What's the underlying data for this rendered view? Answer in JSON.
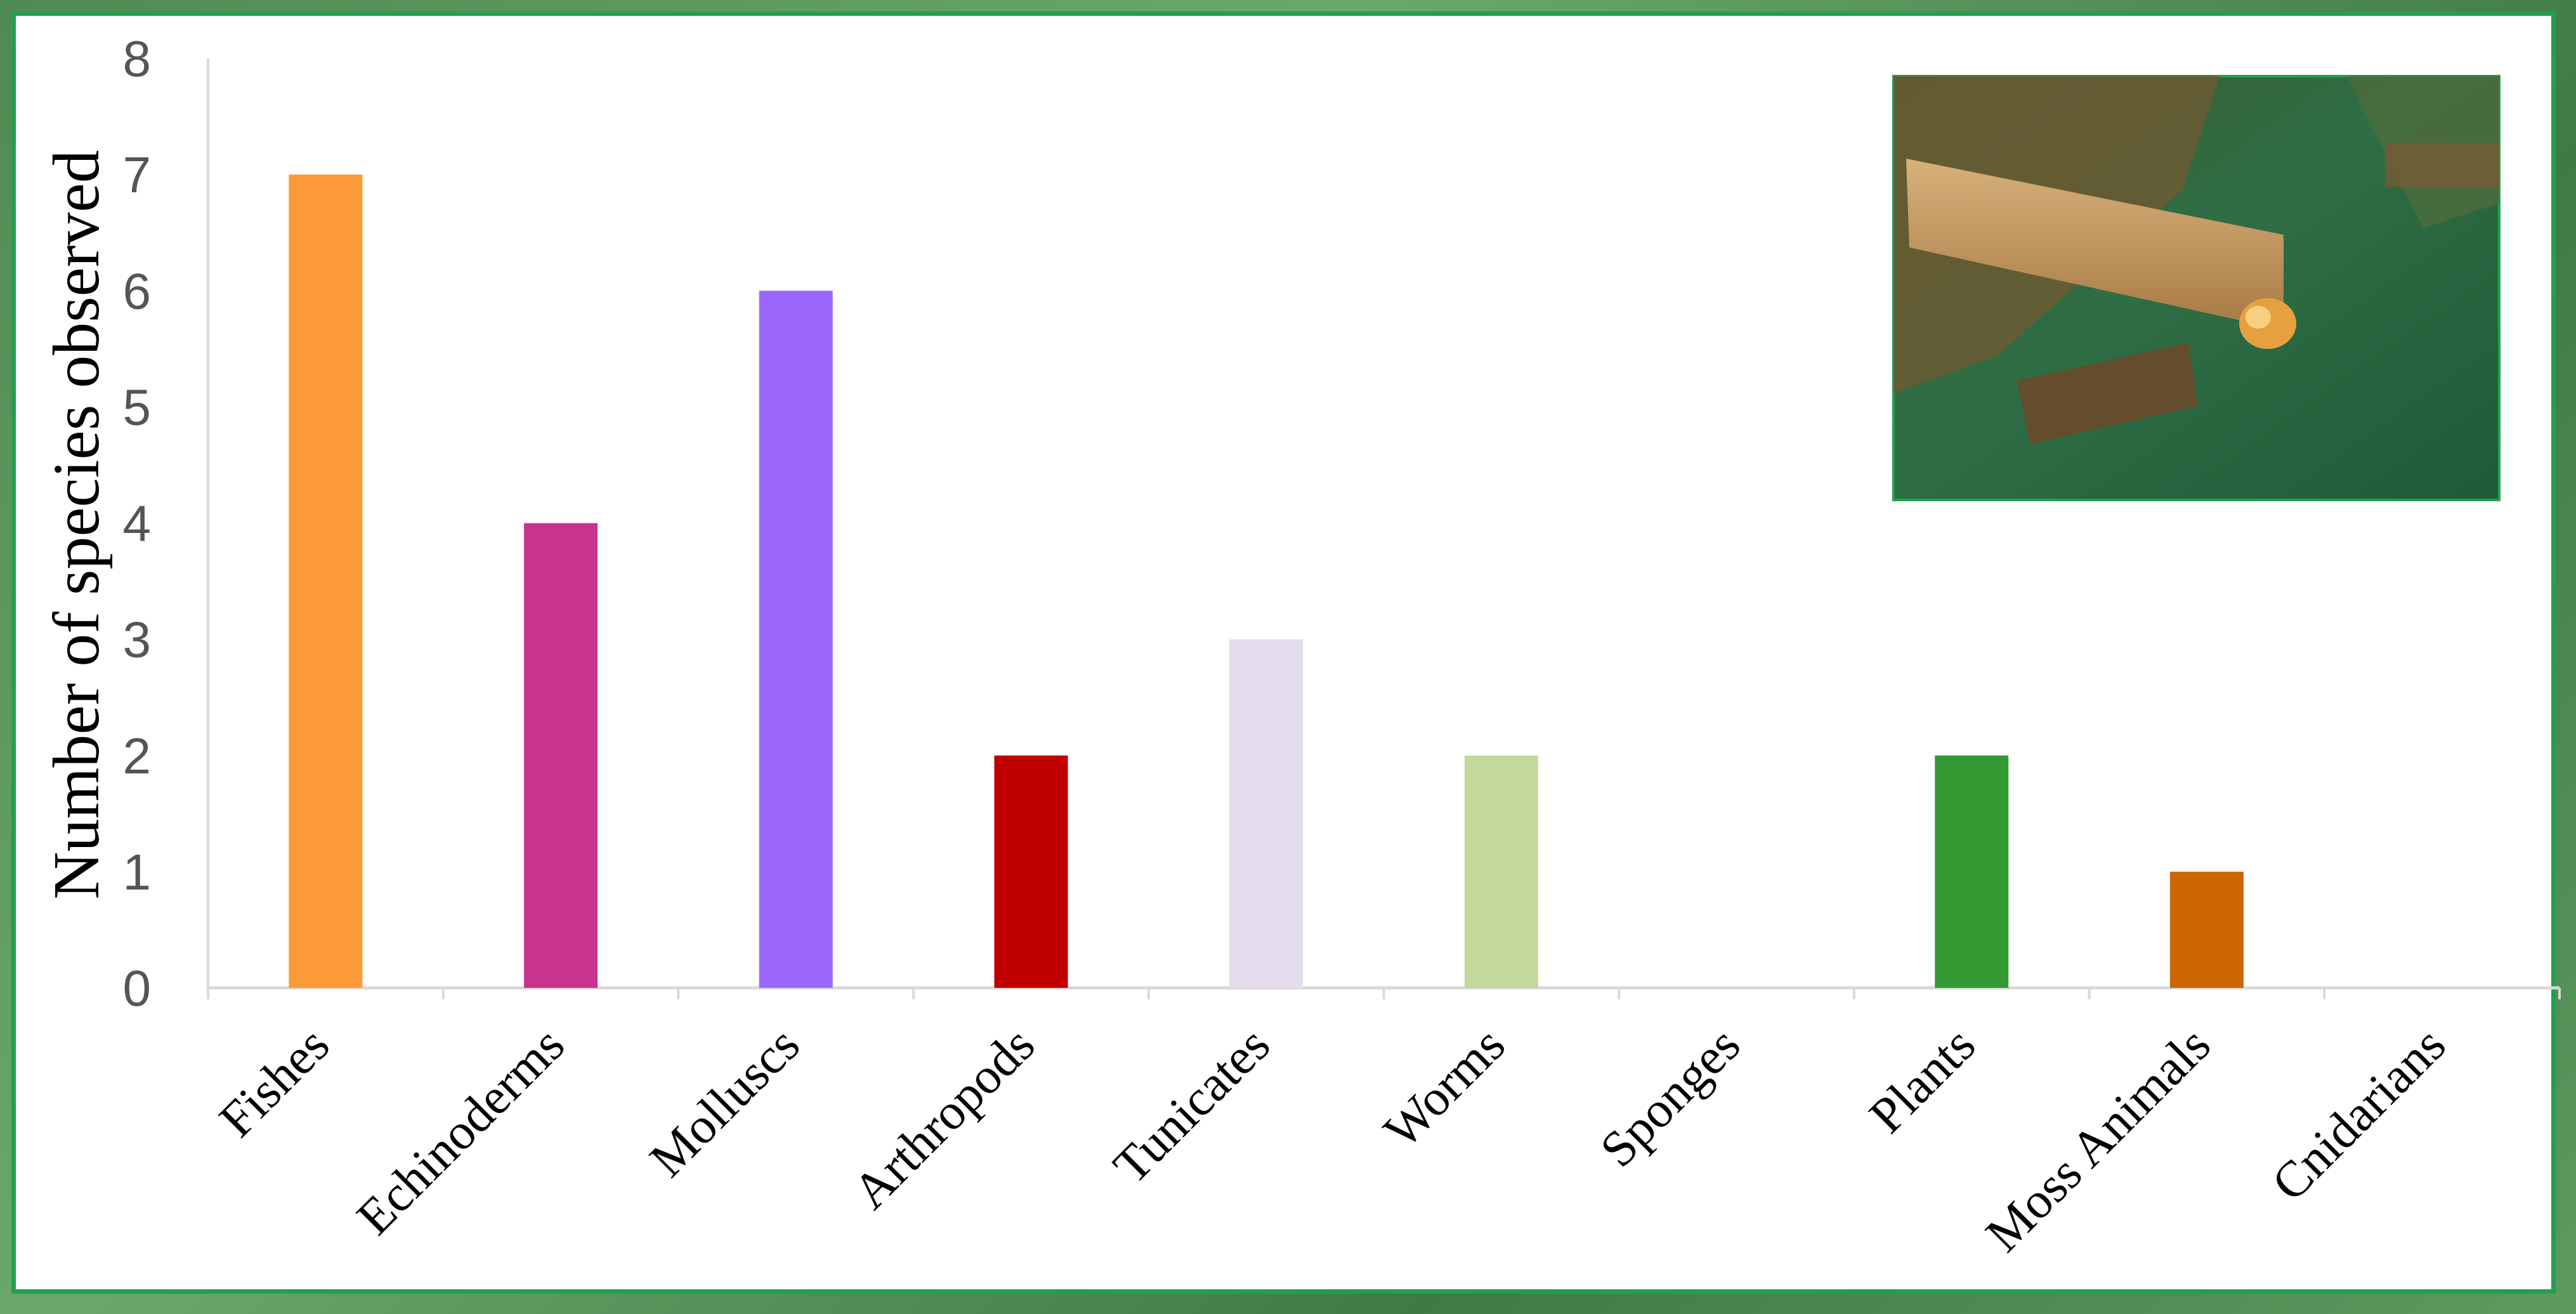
{
  "chart_data": {
    "type": "bar",
    "title": "",
    "xlabel": "",
    "ylabel": "Number of species observed",
    "categories": [
      "Fishes",
      "Echinoderms",
      "Molluscs",
      "Arthropods",
      "Tunicates",
      "Worms",
      "Sponges",
      "Plants",
      "Moss Animals",
      "Cnidarians"
    ],
    "values": [
      7,
      4,
      6,
      2,
      3,
      2,
      0,
      2,
      1,
      0
    ],
    "colors": [
      "#fb9a37",
      "#c9338f",
      "#9a66fb",
      "#c00000",
      "#e3dded",
      "#c4d89a",
      "#ffffff",
      "#339933",
      "#cc6600",
      "#ffffff"
    ],
    "ylim": [
      0,
      8
    ],
    "yticks": [
      0,
      1,
      2,
      3,
      4,
      5,
      6,
      7,
      8
    ],
    "grid": false,
    "legend": "none",
    "inset_photo": "underwater-wreck-photo"
  }
}
